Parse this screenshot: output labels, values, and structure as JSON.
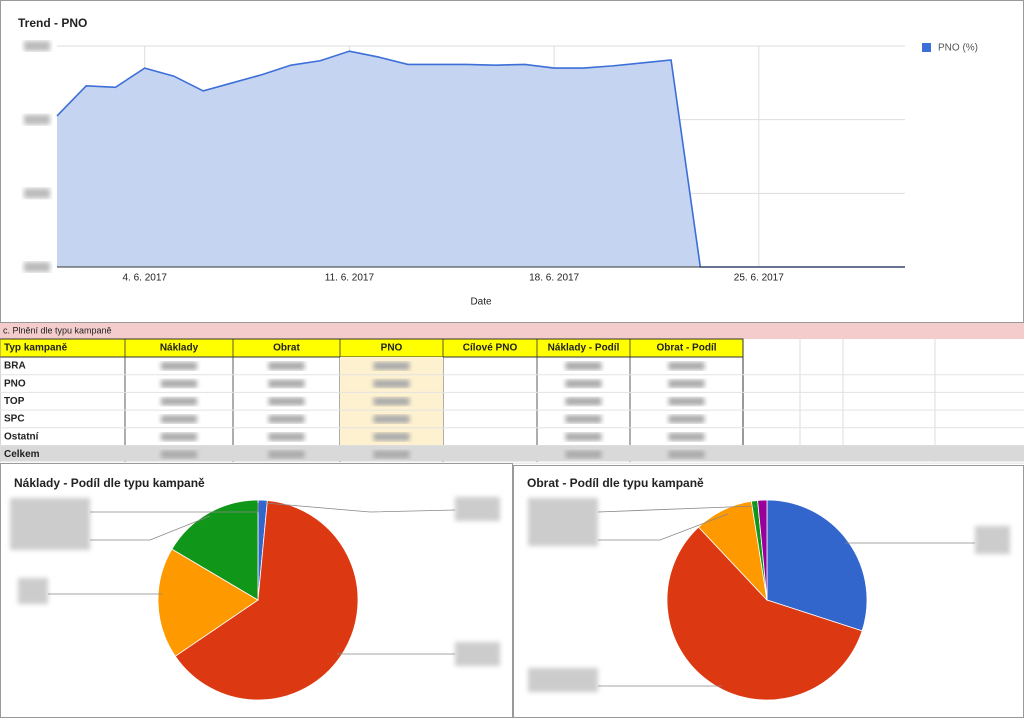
{
  "chart_data": [
    {
      "type": "area",
      "title": "Trend - PNO",
      "x_label": "Date",
      "x": [
        "2017-06-01",
        "2017-06-02",
        "2017-06-03",
        "2017-06-04",
        "2017-06-05",
        "2017-06-06",
        "2017-06-07",
        "2017-06-08",
        "2017-06-09",
        "2017-06-10",
        "2017-06-11",
        "2017-06-12",
        "2017-06-13",
        "2017-06-14",
        "2017-06-15",
        "2017-06-16",
        "2017-06-17",
        "2017-06-18",
        "2017-06-19",
        "2017-06-20",
        "2017-06-21",
        "2017-06-22",
        "2017-06-23",
        "2017-06-24",
        "2017-06-25",
        "2017-06-26",
        "2017-06-27",
        "2017-06-28",
        "2017-06-29",
        "2017-06-30"
      ],
      "series": [
        {
          "name": "PNO (%)",
          "color": "#3c6fd8",
          "fill": "#c5d4f1",
          "values": [
            20.5,
            24.6,
            24.4,
            27.0,
            25.9,
            23.9,
            25.0,
            26.1,
            27.4,
            28.0,
            29.3,
            28.5,
            27.5,
            27.5,
            27.5,
            27.4,
            27.5,
            27.0,
            27.0,
            27.3,
            27.7,
            28.1,
            0,
            0,
            0,
            0,
            0,
            0,
            0,
            0
          ]
        }
      ],
      "xlim": [
        "2017-06-01",
        "2017-06-30"
      ],
      "xticks": [
        {
          "value": "2017-06-04",
          "label": "4. 6. 2017"
        },
        {
          "value": "2017-06-11",
          "label": "11. 6. 2017"
        },
        {
          "value": "2017-06-18",
          "label": "18. 6. 2017"
        },
        {
          "value": "2017-06-25",
          "label": "25. 6. 2017"
        }
      ],
      "ylim": [
        0,
        30
      ],
      "yticks": [
        0,
        10,
        20,
        30
      ],
      "grid": true,
      "legend": "top-right"
    },
    {
      "type": "pie",
      "title": "Náklady - Podíl dle typu kampaně",
      "values": [
        1.5,
        64,
        18,
        16.5
      ],
      "colors": [
        "#3366cc",
        "#dc3912",
        "#ff9900",
        "#109618"
      ]
    },
    {
      "type": "pie",
      "title": "Obrat - Podíl dle typu kampaně",
      "values": [
        30,
        58,
        9.5,
        1,
        1.5
      ],
      "colors": [
        "#3366cc",
        "#dc3912",
        "#ff9900",
        "#109618",
        "#990099"
      ]
    }
  ],
  "table": {
    "title": "c. Plnění dle typu kampaně",
    "columns": [
      "Typ kampaně",
      "Náklady",
      "Obrat",
      "PNO",
      "Cílové PNO",
      "Náklady - Podíl",
      "Obrat - Podíl"
    ],
    "rows": [
      "BRA",
      "PNO",
      "TOP",
      "SPC",
      "Ostatní",
      "Celkem"
    ]
  }
}
